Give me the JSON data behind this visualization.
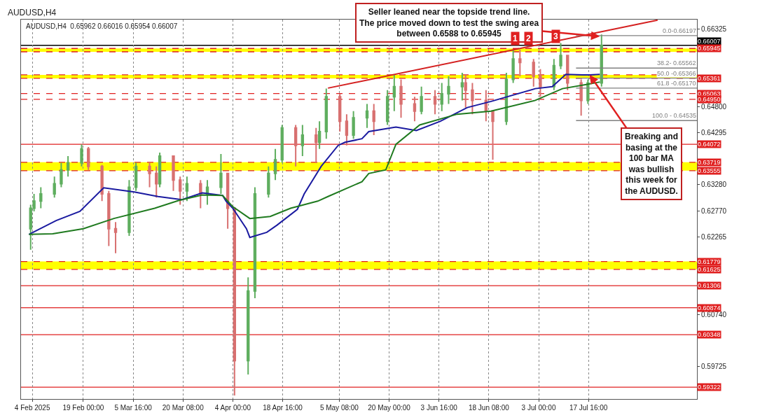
{
  "chart_data": {
    "type": "candlestick",
    "title": "AUDUSD,H4",
    "subtitle": "AUDUSD,H4  0.65962 0.66016 0.65954 0.66007",
    "xlim": [
      "2025-01-31T16:00",
      "2025-08-18T14:00"
    ],
    "xticks": [
      {
        "value": "2025-02-04T00:00",
        "label": "4 Feb 2025"
      },
      {
        "value": "2025-02-19T00:00",
        "label": "19 Feb 00:00"
      },
      {
        "value": "2025-03-05T16:00",
        "label": "5 Mar 16:00"
      },
      {
        "value": "2025-03-20T08:00",
        "label": "20 Mar 08:00"
      },
      {
        "value": "2025-04-04T00:00",
        "label": "4 Apr 00:00"
      },
      {
        "value": "2025-04-18T16:00",
        "label": "18 Apr 16:00"
      },
      {
        "value": "2025-05-05T08:00",
        "label": "5 May 08:00"
      },
      {
        "value": "2025-05-20T00:00",
        "label": "20 May 00:00"
      },
      {
        "value": "2025-06-03T16:00",
        "label": "3 Jun 16:00"
      },
      {
        "value": "2025-06-18T08:00",
        "label": "18 Jun 08:00"
      },
      {
        "value": "2025-07-03T00:00",
        "label": "3 Jul 00:00"
      },
      {
        "value": "2025-07-17T16:00",
        "label": "17 Jul 16:00"
      }
    ],
    "ylim": [
      0.5909,
      0.6651
    ],
    "yticks": [
      {
        "value": 0.66325,
        "label": "0.66325"
      },
      {
        "value": 0.648,
        "label": "0.64800"
      },
      {
        "value": 0.64295,
        "label": "0.64295"
      },
      {
        "value": 0.6328,
        "label": "0.63280"
      },
      {
        "value": 0.6277,
        "label": "0.62770"
      },
      {
        "value": 0.62265,
        "label": "0.62265"
      },
      {
        "value": 0.6074,
        "label": "0.60740"
      },
      {
        "value": 0.59725,
        "label": "0.59725"
      }
    ],
    "grid": "x",
    "series": [
      {
        "x": [
          "2025-02-03T12:00",
          "2025-02-04T12:00",
          "2025-02-06T12:00",
          "2025-02-10T12:00",
          "2025-02-12T12:00",
          "2025-02-14T12:00",
          "2025-02-18T12:00",
          "2025-02-20T12:00",
          "2025-02-24T12:00",
          "2025-02-26T12:00",
          "2025-02-28T12:00",
          "2025-03-04T12:00",
          "2025-03-06T12:00",
          "2025-03-10T12:00",
          "2025-03-12T12:00",
          "2025-03-13T12:00",
          "2025-03-17T12:00",
          "2025-03-19T12:00",
          "2025-03-21T12:00",
          "2025-03-25T12:00",
          "2025-03-27T12:00",
          "2025-03-31T12:00",
          "2025-04-02T12:00",
          "2025-04-04T12:00",
          "2025-04-08T12:00",
          "2025-04-10T12:00",
          "2025-04-14T12:00",
          "2025-04-16T12:00",
          "2025-04-18T12:00",
          "2025-04-22T12:00",
          "2025-04-24T12:00",
          "2025-04-28T12:00",
          "2025-04-29T12:00",
          "2025-05-01T12:00",
          "2025-05-05T12:00",
          "2025-05-07T12:00",
          "2025-05-09T12:00",
          "2025-05-13T12:00",
          "2025-05-15T12:00",
          "2025-05-19T12:00",
          "2025-05-21T12:00",
          "2025-05-23T12:00",
          "2025-05-27T12:00",
          "2025-05-29T12:00",
          "2025-06-02T12:00",
          "2025-06-04T12:00",
          "2025-06-06T12:00",
          "2025-06-10T12:00",
          "2025-06-11T12:00",
          "2025-06-13T12:00",
          "2025-06-17T12:00",
          "2025-06-19T12:00",
          "2025-06-23T12:00",
          "2025-06-25T12:00",
          "2025-06-27T12:00",
          "2025-07-01T12:00",
          "2025-07-03T12:00",
          "2025-07-07T12:00",
          "2025-07-09T12:00",
          "2025-07-11T12:00",
          "2025-07-15T12:00",
          "2025-07-17T12:00",
          "2025-07-21T12:00"
        ],
        "ohlc": [
          [
            0.6242,
            0.6289,
            0.6201,
            0.6282
          ],
          [
            0.6282,
            0.631,
            0.6276,
            0.6296
          ],
          [
            0.6296,
            0.6323,
            0.6282,
            0.631
          ],
          [
            0.631,
            0.6344,
            0.6303,
            0.633
          ],
          [
            0.633,
            0.6371,
            0.6323,
            0.6357
          ],
          [
            0.6357,
            0.6384,
            0.6344,
            0.6371
          ],
          [
            0.6371,
            0.6407,
            0.6364,
            0.6398
          ],
          [
            0.6398,
            0.6402,
            0.6357,
            0.6364
          ],
          [
            0.6364,
            0.6367,
            0.6296,
            0.631
          ],
          [
            0.631,
            0.6316,
            0.6208,
            0.6242
          ],
          [
            0.6242,
            0.6255,
            0.6194,
            0.6235
          ],
          [
            0.6235,
            0.6337,
            0.6228,
            0.6323
          ],
          [
            0.6323,
            0.6371,
            0.6316,
            0.6364
          ],
          [
            0.6364,
            0.6371,
            0.6323,
            0.635
          ],
          [
            0.635,
            0.6364,
            0.6303,
            0.633
          ],
          [
            0.633,
            0.6391,
            0.6323,
            0.6384
          ],
          [
            0.6384,
            0.6384,
            0.6316,
            0.6337
          ],
          [
            0.6337,
            0.6344,
            0.6289,
            0.6316
          ],
          [
            0.6316,
            0.6344,
            0.6296,
            0.633
          ],
          [
            0.633,
            0.6337,
            0.6282,
            0.631
          ],
          [
            0.631,
            0.6337,
            0.6289,
            0.6323
          ],
          [
            0.6323,
            0.6388,
            0.631,
            0.635
          ],
          [
            0.635,
            0.635,
            0.6242,
            0.6282
          ],
          [
            0.6282,
            0.6282,
            0.5916,
            0.5984
          ],
          [
            0.5984,
            0.6147,
            0.5957,
            0.612
          ],
          [
            0.612,
            0.6323,
            0.6106,
            0.631
          ],
          [
            0.631,
            0.6364,
            0.6303,
            0.635
          ],
          [
            0.635,
            0.6398,
            0.6337,
            0.6377
          ],
          [
            0.6377,
            0.6445,
            0.6371,
            0.6439
          ],
          [
            0.6439,
            0.6445,
            0.6364,
            0.6405
          ],
          [
            0.6405,
            0.6445,
            0.6384,
            0.6425
          ],
          [
            0.6425,
            0.6439,
            0.6371,
            0.6411
          ],
          [
            0.6411,
            0.6452,
            0.6398,
            0.6432
          ],
          [
            0.6432,
            0.6516,
            0.6418,
            0.65
          ],
          [
            0.65,
            0.6506,
            0.6432,
            0.6452
          ],
          [
            0.6452,
            0.6466,
            0.6405,
            0.6425
          ],
          [
            0.6425,
            0.6472,
            0.6418,
            0.6459
          ],
          [
            0.6459,
            0.6486,
            0.6439,
            0.6472
          ],
          [
            0.6472,
            0.6486,
            0.6425,
            0.6452
          ],
          [
            0.6452,
            0.6513,
            0.6445,
            0.65
          ],
          [
            0.65,
            0.6543,
            0.6472,
            0.652
          ],
          [
            0.652,
            0.6534,
            0.6459,
            0.6486
          ],
          [
            0.6486,
            0.65,
            0.6452,
            0.6472
          ],
          [
            0.6472,
            0.652,
            0.6466,
            0.65
          ],
          [
            0.65,
            0.6513,
            0.6466,
            0.6486
          ],
          [
            0.6486,
            0.6527,
            0.6472,
            0.6506
          ],
          [
            0.6506,
            0.654,
            0.6486,
            0.652
          ],
          [
            0.652,
            0.6547,
            0.6493,
            0.6527
          ],
          [
            0.6527,
            0.6543,
            0.6479,
            0.6513
          ],
          [
            0.6513,
            0.6527,
            0.6466,
            0.6493
          ],
          [
            0.6493,
            0.6513,
            0.6452,
            0.6472
          ],
          [
            0.6472,
            0.6472,
            0.6377,
            0.6452
          ],
          [
            0.6452,
            0.6547,
            0.6445,
            0.6534
          ],
          [
            0.6534,
            0.6592,
            0.6527,
            0.6574
          ],
          [
            0.6574,
            0.6592,
            0.654,
            0.6567
          ],
          [
            0.6567,
            0.6574,
            0.652,
            0.654
          ],
          [
            0.654,
            0.6554,
            0.65,
            0.652
          ],
          [
            0.652,
            0.6574,
            0.6513,
            0.6561
          ],
          [
            0.6561,
            0.6605,
            0.6554,
            0.6581
          ],
          [
            0.6581,
            0.6581,
            0.6513,
            0.6527
          ],
          [
            0.6527,
            0.6534,
            0.6463,
            0.6493
          ],
          [
            0.6493,
            0.6534,
            0.6486,
            0.6527
          ],
          [
            0.6527,
            0.6622,
            0.652,
            0.66007
          ]
        ],
        "colors": [
          "#5fae5f",
          "#5fae5f",
          "#5fae5f",
          "#5fae5f",
          "#5fae5f",
          "#5fae5f",
          "#5fae5f",
          "#d87070",
          "#d87070",
          "#d87070",
          "#d87070",
          "#5fae5f",
          "#5fae5f",
          "#d87070",
          "#d87070",
          "#5fae5f",
          "#d87070",
          "#d87070",
          "#5fae5f",
          "#d87070",
          "#5fae5f",
          "#5fae5f",
          "#d87070",
          "#d87070",
          "#5fae5f",
          "#5fae5f",
          "#5fae5f",
          "#5fae5f",
          "#5fae5f",
          "#d87070",
          "#5fae5f",
          "#d87070",
          "#5fae5f",
          "#5fae5f",
          "#d87070",
          "#d87070",
          "#5fae5f",
          "#5fae5f",
          "#d87070",
          "#5fae5f",
          "#5fae5f",
          "#d87070",
          "#d87070",
          "#5fae5f",
          "#d87070",
          "#5fae5f",
          "#5fae5f",
          "#5fae5f",
          "#d87070",
          "#d87070",
          "#d87070",
          "#d87070",
          "#5fae5f",
          "#5fae5f",
          "#d87070",
          "#d87070",
          "#d87070",
          "#5fae5f",
          "#5fae5f",
          "#d87070",
          "#d87070",
          "#5fae5f",
          "#5fae5f"
        ]
      },
      {
        "type": "line",
        "color": "#1a1aa0",
        "x": [
          "2025-02-03",
          "2025-02-11",
          "2025-02-18",
          "2025-02-25",
          "2025-03-06",
          "2025-03-13",
          "2025-03-20",
          "2025-03-26",
          "2025-04-01",
          "2025-04-02",
          "2025-04-04",
          "2025-04-08",
          "2025-04-09",
          "2025-04-14",
          "2025-04-17",
          "2025-04-23",
          "2025-04-25",
          "2025-04-30",
          "2025-05-05",
          "2025-05-07",
          "2025-05-12",
          "2025-05-14",
          "2025-05-22",
          "2025-05-28",
          "2025-06-04",
          "2025-06-12",
          "2025-06-19",
          "2025-07-02",
          "2025-07-07",
          "2025-07-11",
          "2025-07-16",
          "2025-07-18",
          "2025-07-21"
        ],
        "values": [
          0.6231,
          0.6258,
          0.6276,
          0.6322,
          0.6314,
          0.6305,
          0.6299,
          0.6312,
          0.6307,
          0.6296,
          0.6282,
          0.6242,
          0.6225,
          0.6235,
          0.6249,
          0.628,
          0.631,
          0.6364,
          0.6405,
          0.6411,
          0.6418,
          0.6432,
          0.6441,
          0.6434,
          0.6452,
          0.6479,
          0.6491,
          0.6516,
          0.652,
          0.6544,
          0.6543,
          0.6543,
          0.6544
        ]
      },
      {
        "type": "line",
        "color": "#1f7a1f",
        "x": [
          "2025-02-03",
          "2025-02-10",
          "2025-02-19",
          "2025-02-28",
          "2025-03-12",
          "2025-03-19",
          "2025-03-26",
          "2025-04-01",
          "2025-04-04",
          "2025-04-09",
          "2025-04-15",
          "2025-04-21",
          "2025-04-29",
          "2025-05-02",
          "2025-05-12",
          "2025-05-14",
          "2025-05-19",
          "2025-05-22",
          "2025-05-29",
          "2025-06-09",
          "2025-06-19",
          "2025-07-02",
          "2025-07-10",
          "2025-07-17",
          "2025-07-21"
        ],
        "values": [
          0.6231,
          0.6232,
          0.6242,
          0.6262,
          0.6282,
          0.6297,
          0.6308,
          0.6307,
          0.6285,
          0.6262,
          0.6266,
          0.6282,
          0.6296,
          0.6305,
          0.6334,
          0.635,
          0.6357,
          0.6407,
          0.6445,
          0.6466,
          0.6472,
          0.6493,
          0.6516,
          0.6524,
          0.6529
        ]
      },
      {
        "type": "line",
        "color": "#d42020",
        "x": [
          "2025-05-02",
          "2025-08-07"
        ],
        "values": [
          0.6517,
          0.665
        ]
      },
      {
        "type": "line",
        "name": "0.0-0.66197",
        "color": "#808080",
        "x": [
          "2025-07-14",
          "2025-08-18T14:00"
        ],
        "values": [
          0.66197,
          0.66197
        ]
      },
      {
        "type": "line",
        "name": "38.2- 0.65562",
        "color": "#808080",
        "x": [
          "2025-07-14",
          "2025-08-18T14:00"
        ],
        "values": [
          0.65562,
          0.65562
        ]
      },
      {
        "type": "line",
        "name": "50.0 -0.65366",
        "color": "#808080",
        "x": [
          "2025-07-14",
          "2025-08-18T14:00"
        ],
        "values": [
          0.65366,
          0.65366
        ]
      },
      {
        "type": "line",
        "name": "61.8 -0.65170",
        "color": "#808080",
        "x": [
          "2025-07-14",
          "2025-08-18T14:00"
        ],
        "values": [
          0.6517,
          0.6517
        ]
      },
      {
        "type": "line",
        "name": "100.0 - 0.64535",
        "color": "#808080",
        "x": [
          "2025-07-14",
          "2025-08-18T14:00"
        ],
        "values": [
          0.64535,
          0.64535
        ]
      }
    ],
    "bands": [
      {
        "axis": "y",
        "from": 0.6588,
        "to": 0.65945,
        "color": "#ffff00"
      },
      {
        "axis": "y",
        "from": 0.65361,
        "to": 0.6543,
        "color": "#ffff00"
      },
      {
        "axis": "y",
        "from": 0.63555,
        "to": 0.63719,
        "color": "#ffff00"
      },
      {
        "axis": "y",
        "from": 0.61625,
        "to": 0.61779,
        "color": "#ffff00"
      }
    ],
    "ref_lines": [
      {
        "axis": "y",
        "value": 0.66007,
        "label": "0.66007",
        "color": "#000000",
        "line_style": "solid"
      },
      {
        "axis": "y",
        "value": 0.65945,
        "label": "0.65945",
        "color": "#e02020",
        "line_style": "dashed"
      },
      {
        "axis": "y",
        "value": 0.6588,
        "label": null,
        "color": "#e02020",
        "line_style": "dashed"
      },
      {
        "axis": "y",
        "value": 0.6543,
        "label": null,
        "color": "#e02020",
        "line_style": "dashed"
      },
      {
        "axis": "y",
        "value": 0.65361,
        "label": "0.65361",
        "color": "#e02020",
        "line_style": "dashed"
      },
      {
        "axis": "y",
        "value": 0.65063,
        "label": "0.65063",
        "color": "#e02020",
        "line_style": "dashed"
      },
      {
        "axis": "y",
        "value": 0.6495,
        "label": "0.64950",
        "color": "#e02020",
        "line_style": "dashed"
      },
      {
        "axis": "y",
        "value": 0.64072,
        "label": "0.64072",
        "color": "#e02020",
        "line_style": "solid"
      },
      {
        "axis": "y",
        "value": 0.63719,
        "label": "0.63719",
        "color": "#e02020",
        "line_style": "dashed"
      },
      {
        "axis": "y",
        "value": 0.63555,
        "label": "0.63555",
        "color": "#e02020",
        "line_style": "dashed"
      },
      {
        "axis": "y",
        "value": 0.61779,
        "label": "0.61779",
        "color": "#e02020",
        "line_style": "dashed"
      },
      {
        "axis": "y",
        "value": 0.61625,
        "label": "0.61625",
        "color": "#e02020",
        "line_style": "dashed"
      },
      {
        "axis": "y",
        "value": 0.61306,
        "label": "0.61306",
        "color": "#e02020",
        "line_style": "solid"
      },
      {
        "axis": "y",
        "value": 0.60874,
        "label": "0.60874",
        "color": "#e02020",
        "line_style": "solid"
      },
      {
        "axis": "y",
        "value": 0.60348,
        "label": "0.60348",
        "color": "#e02020",
        "line_style": "solid"
      },
      {
        "axis": "y",
        "value": 0.59322,
        "label": "0.59322",
        "color": "#e02020",
        "line_style": "solid"
      }
    ],
    "annotations": [
      {
        "text": "Seller leaned near the topside trend line. The price moved down to test the swing area between 0.6588 to 0.65945",
        "x": "2025-07-21",
        "y": 0.6618
      },
      {
        "text": "Breaking and basing at the 100 bar MA was bullish this week for the AUDUSD.",
        "x": "2025-07-18",
        "y": 0.6543
      },
      {
        "text": "1",
        "x": "2025-06-26",
        "y": 0.6596
      },
      {
        "text": "2",
        "x": "2025-06-30",
        "y": 0.6596
      },
      {
        "text": "3",
        "x": "2025-07-08",
        "y": 0.6601
      }
    ]
  }
}
